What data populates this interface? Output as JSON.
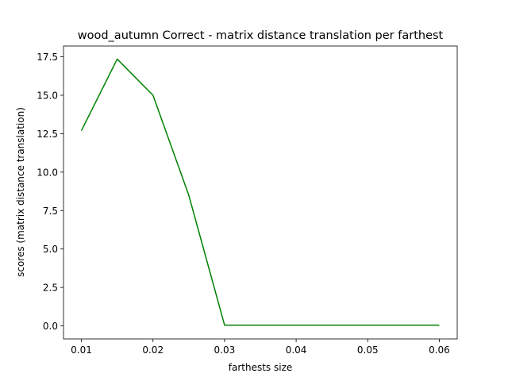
{
  "chart_data": {
    "type": "line",
    "title": "wood_autumn Correct - matrix distance translation per farthest",
    "xlabel": "farthests size",
    "ylabel": "scores (matrix distance translation)",
    "x": [
      0.01,
      0.015,
      0.02,
      0.025,
      0.03,
      0.035,
      0.04,
      0.045,
      0.05,
      0.055,
      0.06
    ],
    "series": [
      {
        "values": [
          12.7,
          17.35,
          15.0,
          8.5,
          0.05,
          0.05,
          0.05,
          0.05,
          0.05,
          0.05,
          0.05
        ],
        "color": "#008000"
      }
    ],
    "xlim": [
      0.0075,
      0.0625
    ],
    "ylim": [
      -0.85,
      18.2
    ],
    "xticks": [
      0.01,
      0.02,
      0.03,
      0.04,
      0.05,
      0.06
    ],
    "xtick_labels": [
      "0.01",
      "0.02",
      "0.03",
      "0.04",
      "0.05",
      "0.06"
    ],
    "yticks": [
      0.0,
      2.5,
      5.0,
      7.5,
      10.0,
      12.5,
      15.0,
      17.5
    ],
    "ytick_labels": [
      "0.0",
      "2.5",
      "5.0",
      "7.5",
      "10.0",
      "12.5",
      "15.0",
      "17.5"
    ],
    "grid": false,
    "legend": "none"
  }
}
